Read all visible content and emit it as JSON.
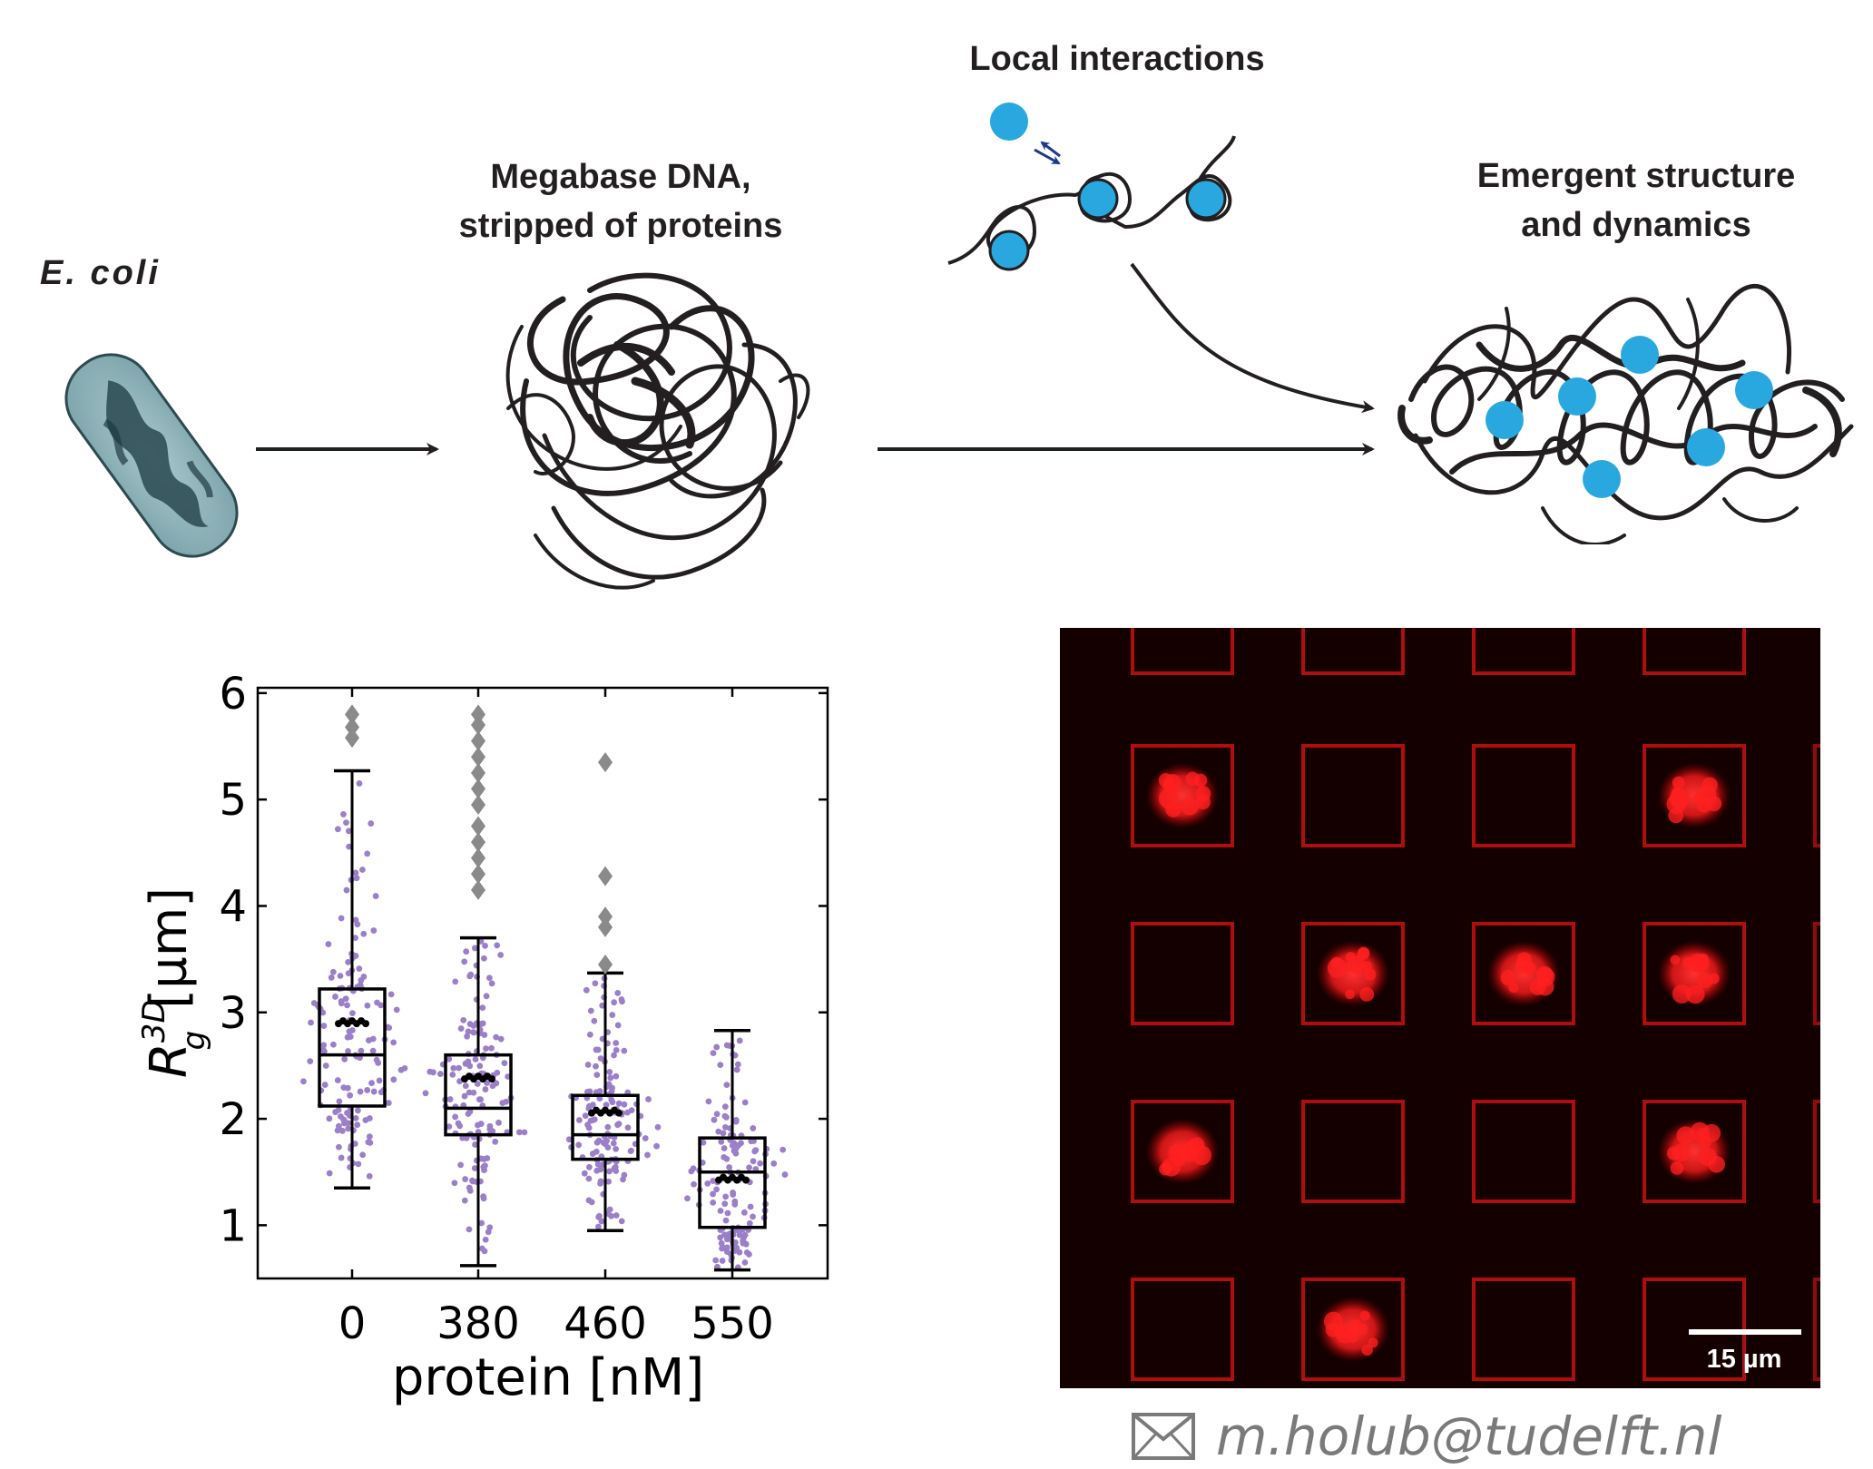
{
  "labels": {
    "ecoli": "E. coli",
    "dna_line1": "Megabase DNA,",
    "dna_line2": "stripped of proteins",
    "local": "Local interactions",
    "emergent_line1": "Emergent structure",
    "emergent_line2": "and dynamics"
  },
  "colors": {
    "protein_dot": "#29a8e0",
    "dna_ink": "#231f20",
    "swarm_point": "#9b7fc9",
    "outlier_marker": "#8a8a8a",
    "micrograph_signal": "#ff2020",
    "micrograph_bg": "#150000"
  },
  "chart_data": {
    "type": "box",
    "categories": [
      "0",
      "380",
      "460",
      "550"
    ],
    "xlabel": "protein [nM]",
    "ylabel_main": "R",
    "ylabel_sup": "3D",
    "ylabel_sub": "g",
    "ylabel_unit": "[µm]",
    "ylim": [
      0.5,
      6.05
    ],
    "yticks": [
      "1",
      "2",
      "3",
      "4",
      "5",
      "6"
    ],
    "boxes": [
      {
        "category": "0",
        "whisker_low": 1.35,
        "q1": 2.12,
        "median": 2.6,
        "q3": 3.22,
        "whisker_high": 5.27,
        "mean": 2.92,
        "outliers": [
          5.58,
          5.68,
          5.8
        ]
      },
      {
        "category": "380",
        "whisker_low": 0.62,
        "q1": 1.85,
        "median": 2.1,
        "q3": 2.6,
        "whisker_high": 3.7,
        "mean": 2.4,
        "outliers": [
          4.15,
          4.3,
          4.45,
          4.6,
          4.75,
          4.95,
          5.1,
          5.25,
          5.4,
          5.55,
          5.7,
          5.8
        ]
      },
      {
        "category": "460",
        "whisker_low": 0.95,
        "q1": 1.62,
        "median": 1.85,
        "q3": 2.22,
        "whisker_high": 3.37,
        "mean": 2.08,
        "outliers": [
          3.45,
          3.8,
          3.9,
          4.28,
          5.35
        ]
      },
      {
        "category": "550",
        "whisker_low": 0.58,
        "q1": 0.98,
        "median": 1.5,
        "q3": 1.82,
        "whisker_high": 2.83,
        "mean": 1.45,
        "outliers": []
      }
    ],
    "grid": false,
    "legend": "none"
  },
  "micrograph": {
    "grid_rows": 5,
    "grid_cols": 4,
    "occupied_cells": [
      [
        1,
        0
      ],
      [
        1,
        3
      ],
      [
        2,
        1
      ],
      [
        2,
        2
      ],
      [
        2,
        3
      ],
      [
        3,
        0
      ],
      [
        3,
        3
      ],
      [
        4,
        1
      ]
    ],
    "scalebar_label": "15 µm"
  },
  "contact": {
    "email": "m.holub@tudelft.nl",
    "icon": "envelope-icon"
  }
}
